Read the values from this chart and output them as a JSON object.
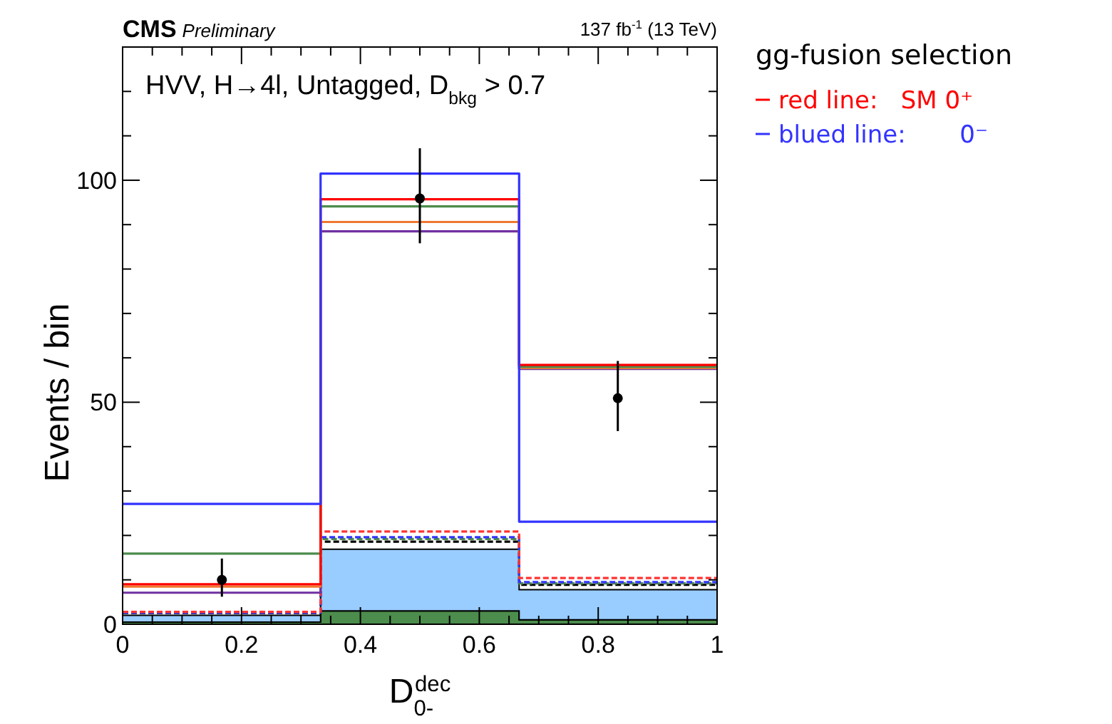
{
  "chart_data": {
    "type": "step",
    "title": "CMS",
    "subtitle": "Preliminary",
    "xlabel": "D$_{0-}$$^{dec}$",
    "ylabel": "Events / bin",
    "legend_title": "gg-fusion selection",
    "legend": "right",
    "annotations": [
      "137 fb$^{-1}$ (13 TeV)",
      "HVV, H→4l, Untagged, D$_{bkg}$ > 0.7"
    ],
    "stacked": true,
    "xlim": [
      0,
      1
    ],
    "xticks": [
      0,
      {
        "value": 0.05,
        "label": null
      },
      {
        "value": 0.1,
        "label": null
      },
      {
        "value": 0.15,
        "label": null
      },
      0.2,
      {
        "value": 0.25,
        "label": null
      },
      {
        "value": 0.3,
        "label": null
      },
      {
        "value": 0.35,
        "label": null
      },
      0.4,
      {
        "value": 0.45,
        "label": null
      },
      {
        "value": 0.5,
        "label": null
      },
      {
        "value": 0.55,
        "label": null
      },
      0.6,
      {
        "value": 0.65,
        "label": null
      },
      {
        "value": 0.7,
        "label": null
      },
      {
        "value": 0.75,
        "label": null
      },
      0.8,
      {
        "value": 0.85,
        "label": null
      },
      {
        "value": 0.9,
        "label": null
      },
      {
        "value": 0.95,
        "label": null
      },
      1
    ],
    "ylim": [
      0,
      130
    ],
    "yticks": [
      0,
      {
        "value": 10,
        "label": null
      },
      {
        "value": 20,
        "label": null
      },
      {
        "value": 30,
        "label": null
      },
      {
        "value": 40,
        "label": null
      },
      50,
      {
        "value": 60,
        "label": null
      },
      {
        "value": 70,
        "label": null
      },
      {
        "value": 80,
        "label": null
      },
      {
        "value": 90,
        "label": null
      },
      100,
      {
        "value": 110,
        "label": null
      },
      {
        "value": 120,
        "label": null
      }
    ],
    "series": [
      {
        "type": "area",
        "color": "#4c8c4c",
        "x": [
          0,
          0.333,
          0.667,
          1
        ],
        "values": [
          0.5,
          3.0,
          1.0,
          1.0
        ]
      },
      {
        "type": "area",
        "color": "#99ccff",
        "x": [
          0,
          0.333,
          0.667,
          1
        ],
        "values": [
          1.5,
          13.9,
          6.8,
          6.8
        ]
      },
      {
        "color": "#000000",
        "line_style": "dashed",
        "x": [
          0,
          0.333,
          0.667,
          1
        ],
        "values": [
          2.5,
          18.6,
          8.9,
          8.9
        ]
      },
      {
        "color": "#4c8c4c",
        "line_style": "dashed",
        "x": [
          0,
          0.333,
          0.667,
          1
        ],
        "values": [
          2.6,
          19.2,
          9.2,
          9.2
        ]
      },
      {
        "color": "#3333ff",
        "line_style": "dashed",
        "x": [
          0,
          0.333,
          0.667,
          1
        ],
        "values": [
          2.6,
          19.6,
          9.5,
          9.5
        ]
      },
      {
        "color": "#ff3333",
        "line_style": "dashed",
        "x": [
          0,
          0.333,
          0.667,
          1
        ],
        "values": [
          2.8,
          20.9,
          10.4,
          10.4
        ]
      },
      {
        "color": "#7030a0",
        "line_style": "solid",
        "x": [
          0,
          0.333,
          0.667,
          1
        ],
        "values": [
          7.1,
          88.5,
          57.5,
          57.5
        ]
      },
      {
        "color": "#f07830",
        "line_style": "solid",
        "x": [
          0,
          0.333,
          0.667,
          1
        ],
        "values": [
          8.5,
          90.6,
          57.7,
          57.7
        ]
      },
      {
        "color": "#4c8c4c",
        "line_style": "solid",
        "x": [
          0,
          0.333,
          0.667,
          1
        ],
        "values": [
          15.9,
          94.1,
          58.0,
          58.0
        ]
      },
      {
        "name": "red line:   SM 0⁺",
        "color": "#ff0000",
        "line_style": "solid",
        "x": [
          0,
          0.333,
          0.667,
          1
        ],
        "values": [
          9.0,
          95.7,
          58.4,
          58.4
        ]
      },
      {
        "name": "blued line:       0⁻",
        "color": "#3333ff",
        "line_style": "solid",
        "x": [
          0,
          0.333,
          0.667,
          1
        ],
        "values": [
          27.1,
          101.5,
          23.1,
          23.1
        ]
      },
      {
        "type": "scatter",
        "color": "#000000",
        "marker": "circle",
        "x": [
          0.167,
          0.5,
          0.833
        ],
        "values": [
          10.0,
          95.9,
          50.9
        ],
        "errors": [
          [
            6.2,
            14.8
          ],
          [
            85.8,
            107.2
          ],
          [
            43.5,
            59.3
          ]
        ]
      }
    ]
  }
}
